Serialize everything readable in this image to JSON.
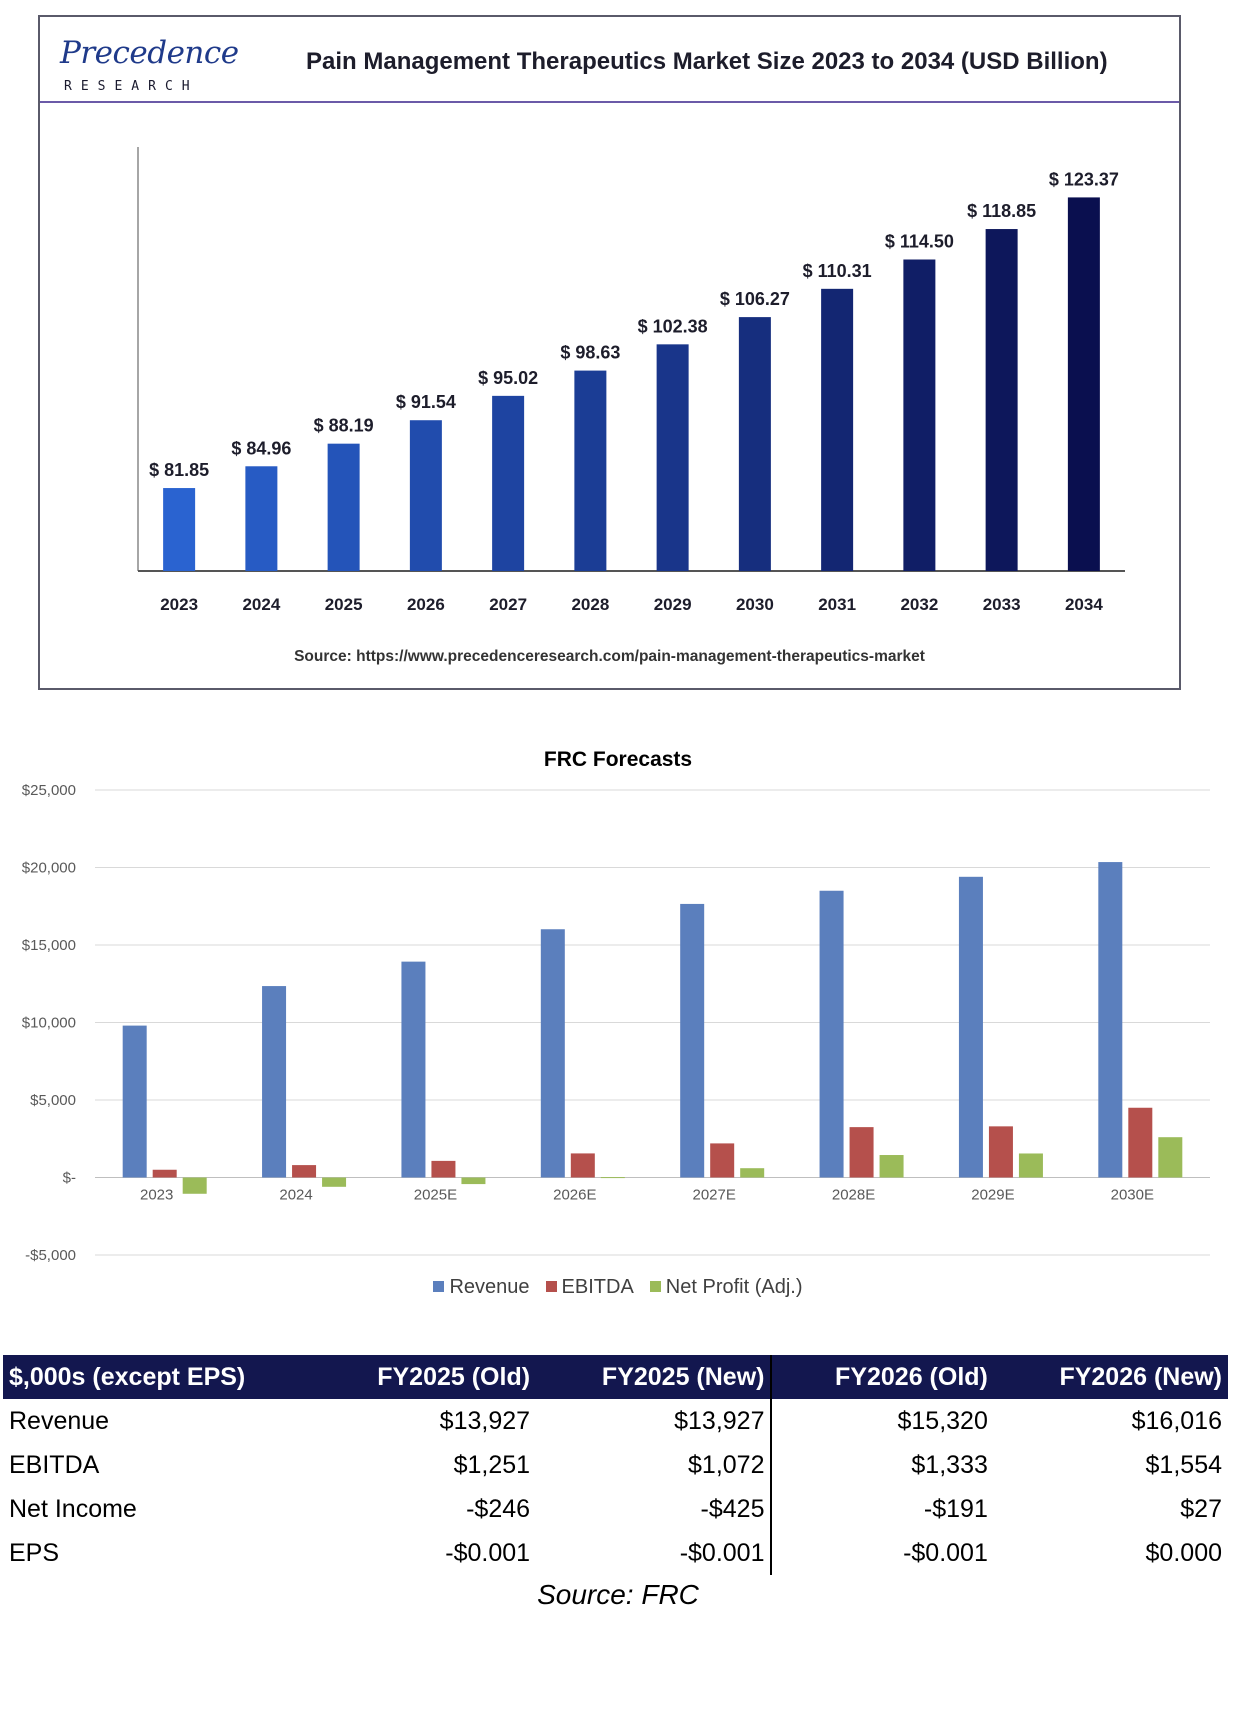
{
  "logo": {
    "brand": "Precedence",
    "sub": "RESEARCH"
  },
  "chart1": {
    "title": "Pain Management Therapeutics Market Size 2023 to 2034 (USD Billion)",
    "source": "Source: https://www.precedenceresearch.com/pain-management-therapeutics-market",
    "colors": {
      "start": "#2a63d0",
      "end": "#0a0f4f"
    }
  },
  "chart2": {
    "title": "FRC Forecasts",
    "colors": {
      "Revenue": "#5b7fbd",
      "EBITDA": "#b5504c",
      "Net Profit (Adj.)": "#9bbb59"
    }
  },
  "chart_data": [
    {
      "type": "bar",
      "title": "Pain Management Therapeutics Market Size 2023 to 2034 (USD Billion)",
      "categories": [
        "2023",
        "2024",
        "2025",
        "2026",
        "2027",
        "2028",
        "2029",
        "2030",
        "2031",
        "2032",
        "2033",
        "2034"
      ],
      "values": [
        81.85,
        84.96,
        88.19,
        91.54,
        95.02,
        98.63,
        102.38,
        106.27,
        110.31,
        114.5,
        118.85,
        123.37
      ],
      "labels": [
        "$ 81.85",
        "$ 84.96",
        "$ 88.19",
        "$ 91.54",
        "$ 95.02",
        "$ 98.63",
        "$ 102.38",
        "$ 106.27",
        "$ 110.31",
        "$ 114.50",
        "$ 118.85",
        "$ 123.37"
      ],
      "xlabel": "",
      "ylabel": "",
      "ylim": [
        70,
        127
      ],
      "grid": false
    },
    {
      "type": "bar",
      "title": "FRC Forecasts",
      "categories": [
        "2023",
        "2024",
        "2025E",
        "2026E",
        "2027E",
        "2028E",
        "2029E",
        "2030E"
      ],
      "series": [
        {
          "name": "Revenue",
          "values": [
            9800,
            12350,
            13927,
            16016,
            17650,
            18500,
            19400,
            20350
          ]
        },
        {
          "name": "EBITDA",
          "values": [
            500,
            800,
            1072,
            1554,
            2200,
            3250,
            3300,
            4500
          ]
        },
        {
          "name": "Net Profit (Adj.)",
          "values": [
            -1050,
            -600,
            -425,
            27,
            600,
            1450,
            1550,
            2600
          ]
        }
      ],
      "yticks": [
        25000,
        20000,
        15000,
        10000,
        5000,
        0,
        -5000
      ],
      "ytick_labels": [
        "$25,000",
        "$20,000",
        "$15,000",
        "$10,000",
        "$5,000",
        "$-",
        "-$5,000"
      ],
      "ylim": [
        -5000,
        25000
      ],
      "grid": true,
      "legend": "bottom"
    }
  ],
  "table": {
    "headers": [
      "$,000s (except EPS)",
      "FY2025 (Old)",
      "FY2025 (New)",
      "FY2026 (Old)",
      "FY2026 (New)"
    ],
    "rows": [
      [
        "Revenue",
        "$13,927",
        "$13,927",
        "$15,320",
        "$16,016"
      ],
      [
        "EBITDA",
        "$1,251",
        "$1,072",
        "$1,333",
        "$1,554"
      ],
      [
        "Net Income",
        "-$246",
        "-$425",
        "-$191",
        "$27"
      ],
      [
        "EPS",
        "-$0.001",
        "-$0.001",
        "-$0.001",
        "$0.000"
      ]
    ],
    "source": "Source: FRC"
  }
}
